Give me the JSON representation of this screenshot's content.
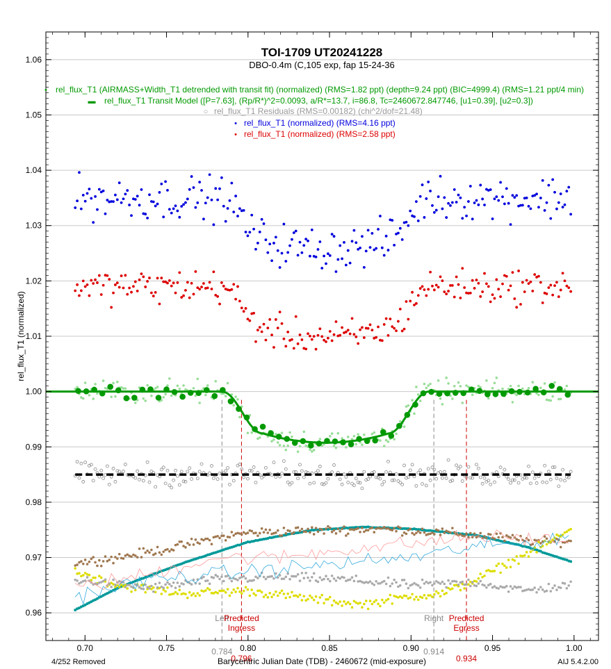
{
  "chart_data": {
    "type": "scatter",
    "title": "TOI-1709 UT20241228",
    "subtitle": "DBO-0.4m (C,105 exp, fap 15-24-36",
    "xlabel": "Barycentric Julian Date (TDB) - 2460672 (mid-exposure)",
    "ylabel": "rel_flux_T1 (normalized)",
    "xlim": [
      0.676,
      1.015
    ],
    "ylim": [
      0.955,
      1.065
    ],
    "x_ticks": [
      "0.70",
      "0.75",
      "0.80",
      "0.85",
      "0.90",
      "0.95",
      "1.00"
    ],
    "y_ticks": [
      "0.96",
      "0.97",
      "0.98",
      "0.99",
      "1.00",
      "1.01",
      "1.02",
      "1.03",
      "1.04",
      "1.05",
      "1.06"
    ],
    "grid": true,
    "legend": [
      {
        "symbol": "•",
        "text": "rel_flux_T1 (AIRMASS+Width_T1 detrended with transit fit) (normalized) (RMS=1.82 ppt) (depth=9.24 ppt) (BIC=4999.4) (RMS=1.21 ppt/4 min)",
        "color": "#009900"
      },
      {
        "symbol": "▬",
        "text": "rel_flux_T1 Transit Model ([P=7.63], (Rp/R*)^2=0.0093, a/R*=13.7, i=86.8, Tc=2460672.847746, [u1=0.39], [u2=0.3])",
        "color": "#009900"
      },
      {
        "symbol": "○",
        "text": "rel_flux_T1 Residuals (RMS=0.00182) (chi^2/dof=21.48)",
        "color": "#999999"
      },
      {
        "symbol": "•",
        "text": "rel_flux_T1 (normalized) (RMS=4.16 ppt)",
        "color": "#0000dd"
      },
      {
        "symbol": "•",
        "text": "rel_flux_T1 (normalized) (RMS=2.58 ppt)",
        "color": "#dd0000"
      }
    ],
    "markers": [
      {
        "label_lines": [
          "Left"
        ],
        "value": "0.784",
        "x": 0.784,
        "color": "#888888"
      },
      {
        "label_lines": [
          "Predicted",
          "Ingress"
        ],
        "value": "0.796",
        "x": 0.796,
        "color": "#cc0000"
      },
      {
        "label_lines": [
          "Right"
        ],
        "value": "0.914",
        "x": 0.914,
        "color": "#888888"
      },
      {
        "label_lines": [
          "Predicted",
          "Egress"
        ],
        "value": "0.934",
        "x": 0.934,
        "color": "#cc0000"
      }
    ],
    "transit_model": {
      "baseline": 1.0,
      "depth": 0.00924,
      "t1": 0.784,
      "t2": 0.809,
      "t3": 0.886,
      "t4": 0.911,
      "tc": 0.8477
    },
    "series": [
      {
        "name": "rel_flux_T1 (normalized) (RMS=4.16 ppt)",
        "color": "#0000dd",
        "offset": 1.035,
        "noise": 0.0033
      },
      {
        "name": "rel_flux_T1 (normalized) (RMS=2.58 ppt)",
        "color": "#dd0000",
        "offset": 1.019,
        "noise": 0.0026
      },
      {
        "name": "rel_flux_T1 (AIRMASS+Width_T1 detrended with transit fit) (normalized) (RMS=1.82 ppt) (depth=9.24 ppt) (BIC=4999.4) (RMS=1.21 ppt/4 min)",
        "color": "#009900",
        "offset": 1.0,
        "noise": 0.0018
      },
      {
        "name": "rel_flux_T1 Residuals (RMS=0.00182) (chi^2/dof=21.48)",
        "color": "#888888",
        "offset": 0.985,
        "noise": 0.0018
      }
    ],
    "aux_series": [
      {
        "color": "#009999",
        "x": [
          0.694,
          0.72,
          0.76,
          0.8,
          0.84,
          0.87,
          0.9,
          0.94,
          0.97,
          0.998
        ],
        "y": [
          0.9605,
          0.9645,
          0.969,
          0.9728,
          0.975,
          0.9755,
          0.9752,
          0.974,
          0.972,
          0.9693
        ]
      },
      {
        "color": "#a07850",
        "x": [
          0.694,
          0.72,
          0.75,
          0.78,
          0.8,
          0.83,
          0.86,
          0.88,
          0.92,
          0.95,
          0.98,
          0.998
        ],
        "y": [
          0.969,
          0.97,
          0.9715,
          0.9735,
          0.9745,
          0.9748,
          0.975,
          0.9752,
          0.9745,
          0.9738,
          0.9728,
          0.973
        ]
      },
      {
        "color": "#dddd00",
        "x": [
          0.694,
          0.72,
          0.76,
          0.8,
          0.84,
          0.87,
          0.9,
          0.92,
          0.94,
          0.96,
          0.98,
          0.998
        ],
        "y": [
          0.9675,
          0.965,
          0.9635,
          0.964,
          0.9625,
          0.9615,
          0.963,
          0.9635,
          0.966,
          0.969,
          0.972,
          0.975
        ]
      },
      {
        "color": "#aaaaaa",
        "x": [
          0.694,
          0.74,
          0.78,
          0.82,
          0.86,
          0.9,
          0.94,
          0.97,
          0.998
        ],
        "y": [
          0.966,
          0.9645,
          0.966,
          0.9665,
          0.966,
          0.965,
          0.9655,
          0.964,
          0.965
        ]
      },
      {
        "color": "#ff9999",
        "x": [
          0.694,
          0.74,
          0.78,
          0.82,
          0.86,
          0.9,
          0.94,
          0.97,
          0.998
        ],
        "y": [
          0.9645,
          0.967,
          0.97,
          0.97,
          0.9715,
          0.9725,
          0.9738,
          0.9735,
          0.9728
        ]
      },
      {
        "color": "#33aadd",
        "x": [
          0.694,
          0.74,
          0.78,
          0.82,
          0.86,
          0.9,
          0.94,
          0.97,
          0.998
        ],
        "y": [
          0.963,
          0.966,
          0.967,
          0.968,
          0.969,
          0.97,
          0.972,
          0.9725,
          0.974
        ]
      }
    ]
  },
  "footer": {
    "removed": "4/252 Removed",
    "version": "AIJ 5.4.2.00"
  }
}
